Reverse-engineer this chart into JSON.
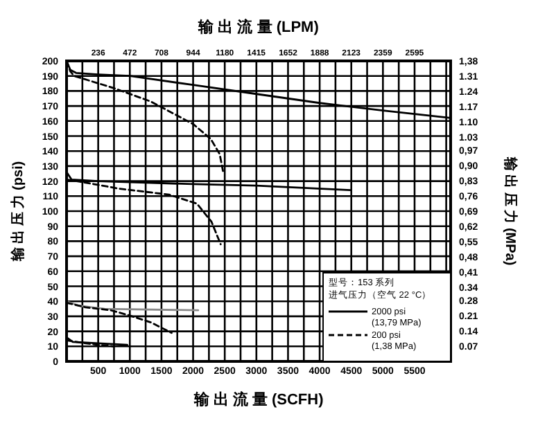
{
  "chart_data": {
    "type": "line",
    "x2label": "输 出 流 量 (LPM)",
    "xlabel": "输 出 流 量 (SCFH)",
    "ylabel": "输 出 压 力 (psi)",
    "y2label": "输 出 压 力 (MPa)",
    "legend_title": "型号：153 系列",
    "annotations": [
      "进气压力（空气 22 °C）"
    ],
    "legend": "bottom right",
    "grid": true,
    "xlim": [
      0,
      6070
    ],
    "xticks": [
      {
        "value": 250,
        "label": null
      },
      500,
      {
        "value": 750,
        "label": null
      },
      1000,
      {
        "value": 1250,
        "label": null
      },
      1500,
      {
        "value": 1750,
        "label": null
      },
      2000,
      {
        "value": 2250,
        "label": null
      },
      2500,
      {
        "value": 2750,
        "label": null
      },
      3000,
      {
        "value": 3250,
        "label": null
      },
      3500,
      {
        "value": 3750,
        "label": null
      },
      4000,
      {
        "value": 4250,
        "label": null
      },
      4500,
      {
        "value": 4750,
        "label": null
      },
      5000,
      {
        "value": 5250,
        "label": null
      },
      5500,
      {
        "value": 5750,
        "label": null
      },
      {
        "value": 6000,
        "label": null
      }
    ],
    "x2lim": [
      0,
      2864
    ],
    "x2ticks": [
      236,
      472,
      708,
      944,
      1180,
      1415,
      1652,
      1888,
      2123,
      2359,
      2595
    ],
    "ylim": [
      0,
      200
    ],
    "yticks": [
      0,
      10,
      20,
      30,
      40,
      50,
      60,
      70,
      80,
      90,
      100,
      110,
      120,
      130,
      140,
      150,
      160,
      170,
      180,
      190,
      200
    ],
    "y2lim": [
      0,
      1.38
    ],
    "y2ticks": [
      {
        "value": 0.07,
        "label": "0.07"
      },
      {
        "value": 0.14,
        "label": "0.14"
      },
      {
        "value": 0.21,
        "label": "0.21"
      },
      {
        "value": 0.28,
        "label": "0.28"
      },
      {
        "value": 0.34,
        "label": "0.34"
      },
      {
        "value": 0.41,
        "label": "0,41"
      },
      {
        "value": 0.48,
        "label": "0,48"
      },
      {
        "value": 0.55,
        "label": "0,55"
      },
      {
        "value": 0.62,
        "label": "0,62"
      },
      {
        "value": 0.69,
        "label": "0,69"
      },
      {
        "value": 0.76,
        "label": "0,76"
      },
      {
        "value": 0.83,
        "label": "0,83"
      },
      {
        "value": 0.9,
        "label": "0,90"
      },
      {
        "value": 0.97,
        "label": "0,97"
      },
      {
        "value": 1.03,
        "label": "1.03"
      },
      {
        "value": 1.1,
        "label": "1.10"
      },
      {
        "value": 1.17,
        "label": "1.17"
      },
      {
        "value": 1.24,
        "label": "1.24"
      },
      {
        "value": 1.31,
        "label": "1.31"
      },
      {
        "value": 1.38,
        "label": "1,38"
      }
    ],
    "series": [
      {
        "name": "2000 psi\n(13,79 MPa)",
        "color": "#000000",
        "line_style": "solid",
        "x": [
          0,
          60,
          150,
          500,
          1000,
          2000,
          3000,
          4000,
          5000,
          6070
        ],
        "values": [
          200,
          194,
          192,
          191,
          190,
          184,
          178,
          172,
          167,
          162
        ]
      },
      {
        "name": "200 psi\n(1,38 MPa)",
        "color": "#000000",
        "line_style": "dashed",
        "x": [
          0,
          60,
          120,
          740,
          1330,
          2000,
          2280,
          2420,
          2480
        ],
        "values": [
          200,
          193,
          190,
          182,
          173,
          158,
          148,
          138,
          125
        ]
      },
      {
        "color": "#000000",
        "line_style": "solid",
        "x": [
          0,
          80,
          500,
          2000,
          3000,
          4490
        ],
        "values": [
          126,
          121,
          120,
          118,
          117,
          114
        ]
      },
      {
        "color": "#000000",
        "line_style": "dashed",
        "x": [
          0,
          300,
          830,
          1620,
          2060,
          2290,
          2435
        ],
        "values": [
          121,
          119,
          115,
          111,
          105,
          93,
          78
        ]
      },
      {
        "color": "#8a8a8a",
        "line_style": "solid",
        "x": [
          0,
          200,
          600,
          2080
        ],
        "values": [
          40,
          37,
          35,
          34
        ]
      },
      {
        "color": "#000000",
        "line_style": "dashed",
        "x": [
          0,
          300,
          700,
          960,
          1330,
          1660
        ],
        "values": [
          39,
          36,
          34,
          31,
          26,
          19
        ]
      },
      {
        "color": "#000000",
        "line_style": "solid",
        "x": [
          0,
          100,
          500,
          960
        ],
        "values": [
          16,
          13,
          12,
          11
        ]
      },
      {
        "color": "#000000",
        "line_style": "dashed",
        "x": [
          0,
          300,
          740
        ],
        "values": [
          14,
          12,
          10
        ]
      }
    ]
  }
}
